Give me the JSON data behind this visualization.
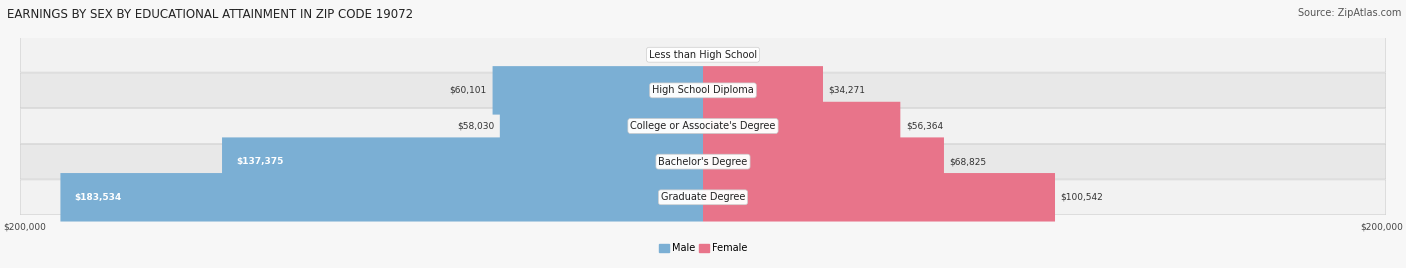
{
  "title": "EARNINGS BY SEX BY EDUCATIONAL ATTAINMENT IN ZIP CODE 19072",
  "source": "Source: ZipAtlas.com",
  "categories": [
    "Less than High School",
    "High School Diploma",
    "College or Associate's Degree",
    "Bachelor's Degree",
    "Graduate Degree"
  ],
  "male_values": [
    0,
    60101,
    58030,
    137375,
    183534
  ],
  "female_values": [
    0,
    34271,
    56364,
    68825,
    100542
  ],
  "male_color": "#7bafd4",
  "female_color": "#e8748a",
  "male_label": "Male",
  "female_label": "Female",
  "max_val": 200000,
  "x_axis_label_left": "$200,000",
  "x_axis_label_right": "$200,000",
  "row_bg_even": "#f2f2f2",
  "row_bg_odd": "#e8e8e8",
  "title_fontsize": 8.5,
  "source_fontsize": 7,
  "cat_fontsize": 7,
  "val_fontsize": 6.5
}
